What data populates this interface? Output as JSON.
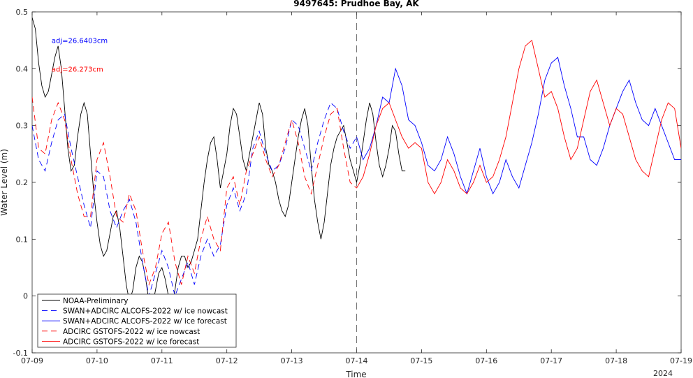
{
  "chart_data": {
    "type": "line",
    "title": "9497645: Prudhoe Bay, AK",
    "xlabel": "Time",
    "ylabel": "Water Level (m)",
    "year_label": "2024",
    "ylim": [
      -0.1,
      0.5
    ],
    "xlim": [
      0,
      10
    ],
    "x_ticks": [
      0,
      1,
      2,
      3,
      4,
      5,
      6,
      7,
      8,
      9,
      10
    ],
    "x_tick_labels": [
      "07-09",
      "07-10",
      "07-11",
      "07-12",
      "07-13",
      "07-14",
      "07-15",
      "07-16",
      "07-17",
      "07-18",
      "07-19"
    ],
    "y_ticks": [
      -0.1,
      0,
      0.1,
      0.2,
      0.3,
      0.4,
      0.5
    ],
    "y_tick_labels": [
      "-0.1",
      "0",
      "0.1",
      "0.2",
      "0.3",
      "0.4",
      "0.5"
    ],
    "nowcast_forecast_divider_x": 5,
    "annotations": [
      {
        "text": "adj=26.6403cm",
        "color": "#0000ff",
        "x": 0.3,
        "y": 0.45
      },
      {
        "text": "adj=26.273cm",
        "color": "#ff0000",
        "x": 0.3,
        "y": 0.4
      }
    ],
    "legend_position": "bottom-left",
    "series": [
      {
        "name": "NOAA-Preliminary",
        "color": "#000000",
        "dash": "solid",
        "x": [
          0,
          0.05,
          0.1,
          0.15,
          0.2,
          0.25,
          0.3,
          0.35,
          0.4,
          0.45,
          0.5,
          0.55,
          0.6,
          0.65,
          0.7,
          0.75,
          0.8,
          0.85,
          0.9,
          0.95,
          1.0,
          1.05,
          1.1,
          1.15,
          1.2,
          1.25,
          1.3,
          1.35,
          1.4,
          1.45,
          1.5,
          1.55,
          1.6,
          1.65,
          1.7,
          1.75,
          1.8,
          1.85,
          1.9,
          1.95,
          2.0,
          2.05,
          2.1,
          2.15,
          2.2,
          2.25,
          2.3,
          2.35,
          2.4,
          2.45,
          2.5,
          2.55,
          2.6,
          2.65,
          2.7,
          2.75,
          2.8,
          2.85,
          2.9,
          2.95,
          3.0,
          3.05,
          3.1,
          3.15,
          3.2,
          3.25,
          3.3,
          3.35,
          3.4,
          3.45,
          3.5,
          3.55,
          3.6,
          3.65,
          3.7,
          3.75,
          3.8,
          3.85,
          3.9,
          3.95,
          4.0,
          4.05,
          4.1,
          4.15,
          4.2,
          4.25,
          4.3,
          4.35,
          4.4,
          4.45,
          4.5,
          4.55,
          4.6,
          4.65,
          4.7,
          4.75,
          4.8,
          4.85,
          4.9,
          4.95,
          5.0,
          5.05,
          5.1,
          5.15,
          5.2,
          5.25,
          5.3,
          5.35,
          5.4,
          5.45,
          5.5,
          5.55,
          5.6,
          5.65,
          5.7,
          5.75
        ],
        "y": [
          0.49,
          0.47,
          0.41,
          0.37,
          0.35,
          0.36,
          0.39,
          0.42,
          0.44,
          0.4,
          0.33,
          0.26,
          0.22,
          0.23,
          0.28,
          0.32,
          0.34,
          0.32,
          0.25,
          0.18,
          0.13,
          0.09,
          0.07,
          0.08,
          0.11,
          0.14,
          0.15,
          0.12,
          0.07,
          0.02,
          -0.01,
          0.01,
          0.05,
          0.07,
          0.06,
          0.03,
          -0.01,
          -0.02,
          0.01,
          0.04,
          0.05,
          0.03,
          0.0,
          -0.02,
          0.01,
          0.05,
          0.07,
          0.07,
          0.05,
          0.06,
          0.08,
          0.1,
          0.15,
          0.2,
          0.24,
          0.27,
          0.28,
          0.24,
          0.19,
          0.22,
          0.25,
          0.3,
          0.33,
          0.32,
          0.28,
          0.24,
          0.22,
          0.25,
          0.28,
          0.31,
          0.34,
          0.32,
          0.26,
          0.23,
          0.22,
          0.2,
          0.17,
          0.15,
          0.14,
          0.16,
          0.2,
          0.24,
          0.28,
          0.31,
          0.33,
          0.3,
          0.23,
          0.17,
          0.13,
          0.1,
          0.13,
          0.18,
          0.23,
          0.26,
          0.28,
          0.29,
          0.3,
          0.27,
          0.24,
          0.22,
          0.2,
          0.23,
          0.27,
          0.31,
          0.34,
          0.32,
          0.27,
          0.23,
          0.21,
          0.23,
          0.26,
          0.3,
          0.29,
          0.25,
          0.22,
          0.22
        ]
      },
      {
        "name": "SWAN+ADCIRC ALCOFS-2022 w/ ice nowcast",
        "color": "#0000ff",
        "dash": "8,5",
        "x": [
          0,
          0.1,
          0.2,
          0.3,
          0.4,
          0.5,
          0.6,
          0.7,
          0.8,
          0.9,
          1.0,
          1.1,
          1.2,
          1.3,
          1.4,
          1.5,
          1.6,
          1.7,
          1.8,
          1.9,
          2.0,
          2.1,
          2.2,
          2.3,
          2.4,
          2.5,
          2.6,
          2.7,
          2.8,
          2.9,
          3.0,
          3.1,
          3.2,
          3.3,
          3.4,
          3.5,
          3.6,
          3.7,
          3.8,
          3.9,
          4.0,
          4.1,
          4.2,
          4.3,
          4.4,
          4.5,
          4.6,
          4.7,
          4.8,
          4.9,
          5.0
        ],
        "y": [
          0.3,
          0.24,
          0.22,
          0.27,
          0.31,
          0.32,
          0.26,
          0.21,
          0.16,
          0.12,
          0.22,
          0.21,
          0.15,
          0.12,
          0.15,
          0.17,
          0.13,
          0.06,
          0.0,
          0.04,
          0.08,
          0.05,
          0.0,
          0.03,
          0.06,
          0.02,
          0.07,
          0.1,
          0.07,
          0.09,
          0.16,
          0.19,
          0.15,
          0.18,
          0.26,
          0.29,
          0.25,
          0.22,
          0.23,
          0.26,
          0.31,
          0.3,
          0.26,
          0.22,
          0.27,
          0.31,
          0.34,
          0.33,
          0.29,
          0.26,
          0.28
        ]
      },
      {
        "name": "SWAN+ADCIRC ALCOFS-2022 w/ ice forecast",
        "color": "#0000ff",
        "dash": "solid",
        "x": [
          5.0,
          5.1,
          5.2,
          5.3,
          5.4,
          5.5,
          5.6,
          5.7,
          5.8,
          5.9,
          6.0,
          6.1,
          6.2,
          6.3,
          6.4,
          6.5,
          6.6,
          6.7,
          6.8,
          6.9,
          7.0,
          7.1,
          7.2,
          7.3,
          7.4,
          7.5,
          7.6,
          7.7,
          7.8,
          7.9,
          8.0,
          8.1,
          8.2,
          8.3,
          8.4,
          8.5,
          8.6,
          8.7,
          8.8,
          8.9,
          9.0,
          9.1,
          9.2,
          9.3,
          9.4,
          9.5,
          9.6,
          9.7,
          9.8,
          9.9,
          10.0
        ],
        "y": [
          0.28,
          0.24,
          0.26,
          0.3,
          0.35,
          0.34,
          0.4,
          0.37,
          0.31,
          0.3,
          0.27,
          0.23,
          0.22,
          0.24,
          0.28,
          0.25,
          0.21,
          0.18,
          0.22,
          0.26,
          0.21,
          0.18,
          0.2,
          0.24,
          0.21,
          0.19,
          0.23,
          0.27,
          0.32,
          0.38,
          0.41,
          0.42,
          0.37,
          0.33,
          0.28,
          0.28,
          0.24,
          0.23,
          0.26,
          0.3,
          0.33,
          0.36,
          0.38,
          0.34,
          0.31,
          0.3,
          0.33,
          0.3,
          0.27,
          0.24,
          0.24
        ]
      },
      {
        "name": "ADCIRC GSTOFS-2022 w/ ice nowcast",
        "color": "#ff0000",
        "dash": "8,5",
        "x": [
          0,
          0.1,
          0.2,
          0.3,
          0.4,
          0.5,
          0.6,
          0.7,
          0.8,
          0.9,
          1.0,
          1.1,
          1.2,
          1.3,
          1.4,
          1.5,
          1.6,
          1.7,
          1.8,
          1.9,
          2.0,
          2.1,
          2.2,
          2.3,
          2.4,
          2.5,
          2.6,
          2.7,
          2.8,
          2.9,
          3.0,
          3.1,
          3.2,
          3.3,
          3.4,
          3.5,
          3.6,
          3.7,
          3.8,
          3.9,
          4.0,
          4.1,
          4.2,
          4.3,
          4.4,
          4.5,
          4.6,
          4.7,
          4.8,
          4.9,
          5.0
        ],
        "y": [
          0.35,
          0.26,
          0.25,
          0.31,
          0.34,
          0.31,
          0.24,
          0.18,
          0.14,
          0.14,
          0.24,
          0.27,
          0.21,
          0.14,
          0.13,
          0.18,
          0.15,
          0.08,
          0.02,
          0.05,
          0.11,
          0.13,
          0.06,
          0.02,
          0.07,
          0.04,
          0.1,
          0.14,
          0.1,
          0.08,
          0.19,
          0.21,
          0.16,
          0.22,
          0.25,
          0.28,
          0.24,
          0.21,
          0.23,
          0.27,
          0.31,
          0.27,
          0.21,
          0.18,
          0.23,
          0.28,
          0.32,
          0.33,
          0.26,
          0.2,
          0.19
        ]
      },
      {
        "name": "ADCIRC GSTOFS-2022 w/ ice forecast",
        "color": "#ff0000",
        "dash": "solid",
        "x": [
          5.0,
          5.1,
          5.2,
          5.3,
          5.4,
          5.5,
          5.6,
          5.7,
          5.8,
          5.9,
          6.0,
          6.1,
          6.2,
          6.3,
          6.4,
          6.5,
          6.6,
          6.7,
          6.8,
          6.9,
          7.0,
          7.1,
          7.2,
          7.3,
          7.4,
          7.5,
          7.6,
          7.7,
          7.8,
          7.9,
          8.0,
          8.1,
          8.2,
          8.3,
          8.4,
          8.5,
          8.6,
          8.7,
          8.8,
          8.9,
          9.0,
          9.1,
          9.2,
          9.3,
          9.4,
          9.5,
          9.6,
          9.7,
          9.8,
          9.9,
          10.0
        ],
        "y": [
          0.19,
          0.21,
          0.25,
          0.3,
          0.33,
          0.34,
          0.31,
          0.28,
          0.26,
          0.27,
          0.26,
          0.2,
          0.18,
          0.2,
          0.24,
          0.22,
          0.19,
          0.18,
          0.2,
          0.23,
          0.2,
          0.21,
          0.24,
          0.28,
          0.34,
          0.4,
          0.44,
          0.45,
          0.4,
          0.35,
          0.36,
          0.33,
          0.28,
          0.24,
          0.26,
          0.31,
          0.36,
          0.38,
          0.34,
          0.3,
          0.33,
          0.32,
          0.28,
          0.24,
          0.22,
          0.21,
          0.26,
          0.31,
          0.34,
          0.33,
          0.26
        ]
      }
    ]
  }
}
